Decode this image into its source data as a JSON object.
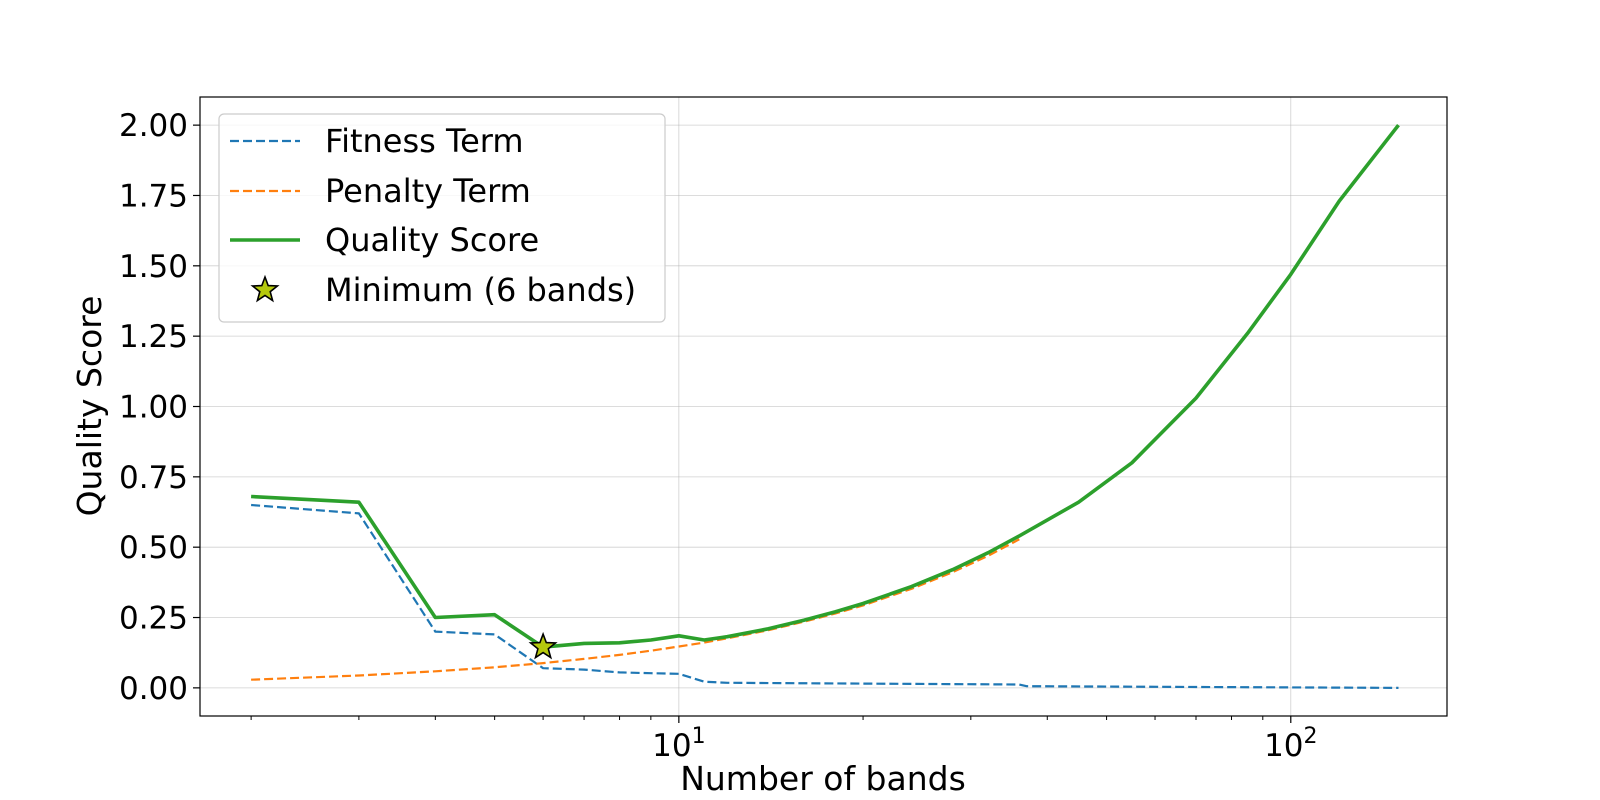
{
  "chart_data": {
    "type": "line",
    "xlabel": "Number of bands",
    "ylabel": "Quality Score",
    "xscale": "log",
    "xlim": [
      1.65,
      180
    ],
    "ylim": [
      -0.1,
      2.1
    ],
    "grid": true,
    "legend_position": "top-left",
    "x_ticks": [
      {
        "value": 10,
        "base": "10",
        "exp": "1"
      },
      {
        "value": 100,
        "base": "10",
        "exp": "2"
      }
    ],
    "y_ticks": [
      {
        "value": 0.0,
        "label": "0.00"
      },
      {
        "value": 0.25,
        "label": "0.25"
      },
      {
        "value": 0.5,
        "label": "0.50"
      },
      {
        "value": 0.75,
        "label": "0.75"
      },
      {
        "value": 1.0,
        "label": "1.00"
      },
      {
        "value": 1.25,
        "label": "1.25"
      },
      {
        "value": 1.5,
        "label": "1.50"
      },
      {
        "value": 1.75,
        "label": "1.75"
      },
      {
        "value": 2.0,
        "label": "2.00"
      }
    ],
    "series": [
      {
        "name": "Fitness Term",
        "color": "#1f77b4",
        "style": "dashed",
        "x": [
          2,
          3,
          4,
          5,
          6,
          7,
          8,
          9,
          10,
          11,
          12,
          36,
          37,
          150
        ],
        "y": [
          0.65,
          0.62,
          0.2,
          0.19,
          0.07,
          0.065,
          0.055,
          0.052,
          0.05,
          0.022,
          0.018,
          0.012,
          0.006,
          0.0
        ]
      },
      {
        "name": "Penalty Term",
        "color": "#ff7f0e",
        "style": "dashed",
        "x": [
          2,
          3,
          4,
          5,
          6,
          7,
          8,
          9,
          10,
          11,
          12,
          14,
          16,
          18,
          20,
          24,
          28,
          32,
          36
        ],
        "y": [
          0.029,
          0.044,
          0.059,
          0.073,
          0.088,
          0.103,
          0.117,
          0.132,
          0.147,
          0.161,
          0.176,
          0.205,
          0.235,
          0.264,
          0.293,
          0.352,
          0.411,
          0.469,
          0.528
        ]
      },
      {
        "name": "Quality Score",
        "color": "#2ca02c",
        "style": "solid",
        "x": [
          2,
          3,
          4,
          5,
          6,
          7,
          8,
          9,
          10,
          11,
          12,
          14,
          16,
          18,
          20,
          24,
          28,
          32,
          36,
          45,
          55,
          70,
          85,
          100,
          120,
          150
        ],
        "y": [
          0.68,
          0.66,
          0.25,
          0.26,
          0.145,
          0.158,
          0.16,
          0.17,
          0.185,
          0.17,
          0.182,
          0.21,
          0.24,
          0.27,
          0.3,
          0.36,
          0.42,
          0.48,
          0.54,
          0.66,
          0.8,
          1.03,
          1.26,
          1.47,
          1.73,
          2.0
        ]
      }
    ],
    "marker": {
      "name": "Minimum (6 bands)",
      "x": 6,
      "y": 0.145,
      "color": "#b5c90d",
      "edge": "#000000"
    }
  }
}
